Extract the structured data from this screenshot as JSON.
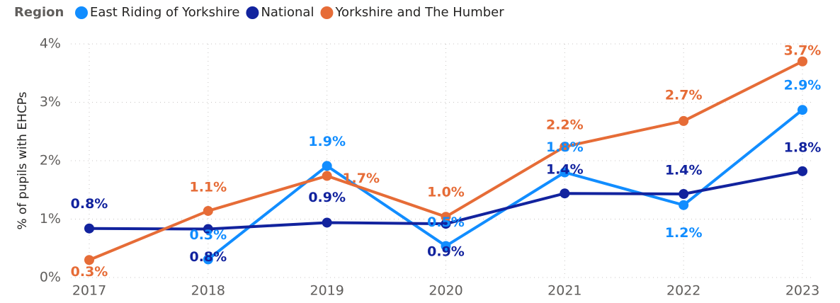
{
  "chart_data": {
    "type": "line",
    "legend_title": "Region",
    "y_label": "% of pupils with EHCPs",
    "categories": [
      "2017",
      "2018",
      "2019",
      "2020",
      "2021",
      "2022",
      "2023"
    ],
    "series": [
      {
        "name": "East Riding of Yorkshire",
        "color": "#118dff",
        "values": [
          null,
          0.31,
          1.91,
          0.54,
          1.8,
          1.24,
          2.87
        ],
        "value_labels": [
          null,
          "0.3%",
          "1.9%",
          "0.5%",
          "1.8%",
          "1.2%",
          "2.9%"
        ]
      },
      {
        "name": "National",
        "color": "#12239e",
        "values": [
          0.84,
          0.83,
          0.94,
          0.92,
          1.44,
          1.43,
          1.82
        ],
        "value_labels": [
          "0.8%",
          "0.8%",
          "0.9%",
          "0.9%",
          "1.4%",
          "1.4%",
          "1.8%"
        ]
      },
      {
        "name": "Yorkshire and The Humber",
        "color": "#e66c37",
        "values": [
          0.3,
          1.14,
          1.74,
          1.04,
          2.24,
          2.68,
          3.7
        ],
        "value_labels": [
          "0.3%",
          "1.1%",
          "1.7%",
          "1.0%",
          "2.2%",
          "2.7%",
          "3.7%"
        ]
      }
    ],
    "ylim": [
      0,
      4
    ],
    "yticks": [
      {
        "value": 0,
        "label": "0%"
      },
      {
        "value": 1,
        "label": "1%"
      },
      {
        "value": 2,
        "label": "2%"
      },
      {
        "value": 3,
        "label": "3%"
      },
      {
        "value": 4,
        "label": "4%"
      }
    ],
    "grid": true,
    "legend_position": "top"
  }
}
